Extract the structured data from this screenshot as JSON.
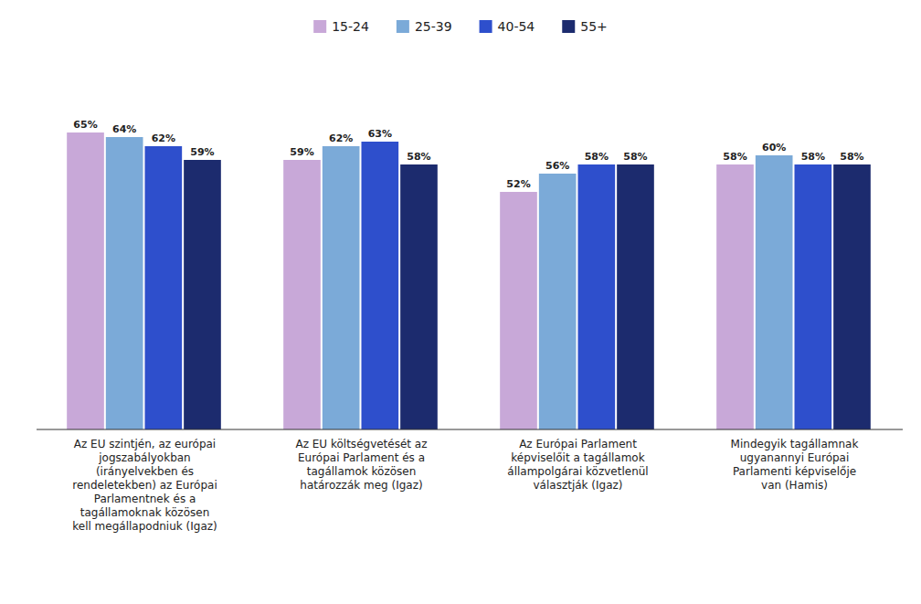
{
  "chart_data": {
    "type": "bar",
    "categories": [
      "Az EU szintjén, az európai\njogszabályokban\n(irányelvekben és\nrendeletekben) az Európai\nParlamentnek és a\ntagállamoknak közösen\nkell megállapodniuk (Igaz)",
      "Az EU költségvetését az\nEurópai Parlament és a\ntagállamok közösen\nhatározzák meg (Igaz)",
      "Az Európai Parlament\nképviselőit a tagállamok\nállampolgárai közvetlenül\nválasztják (Igaz)",
      "Mindegyik tagállamnak\nugyanannyi Európai\nParlamenti képviselője\nvan (Hamis)"
    ],
    "series": [
      {
        "name": "15-24",
        "color": "#C8A8D8",
        "values": [
          65,
          59,
          52,
          58
        ],
        "value_labels": [
          "65%",
          "59%",
          "52%",
          "58%"
        ]
      },
      {
        "name": "25-39",
        "color": "#7BAAD8",
        "values": [
          64,
          62,
          56,
          60
        ],
        "value_labels": [
          "64%",
          "62%",
          "56%",
          "60%"
        ]
      },
      {
        "name": "40-54",
        "color": "#2E4FCC",
        "values": [
          62,
          63,
          58,
          58
        ],
        "value_labels": [
          "62%",
          "63%",
          "58%",
          "58%"
        ]
      },
      {
        "name": "55+",
        "color": "#1C2B6E",
        "values": [
          59,
          58,
          58,
          58
        ],
        "value_labels": [
          "59%",
          "58%",
          "58%",
          "58%"
        ]
      }
    ],
    "ylim": [
      0,
      80
    ],
    "grid": false,
    "legend": "top",
    "data_labels": true,
    "tick_labels": "x"
  }
}
